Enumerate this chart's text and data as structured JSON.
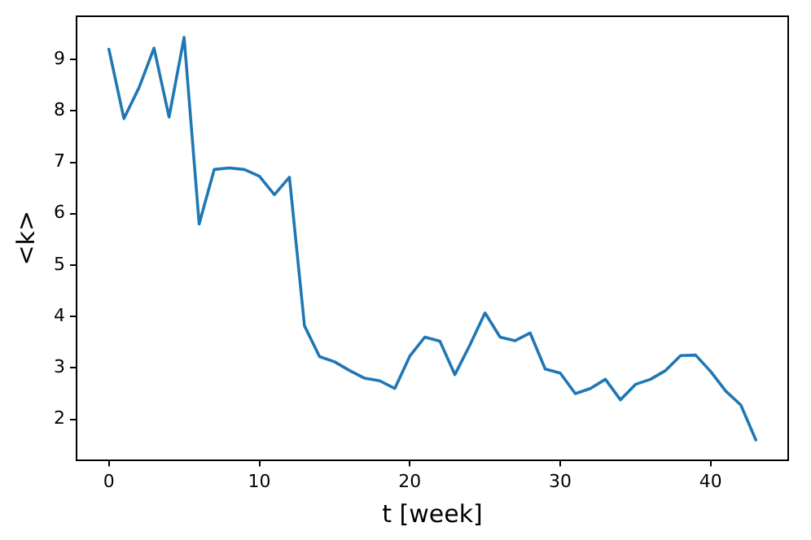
{
  "chart_data": {
    "type": "line",
    "xlabel": "t [week]",
    "ylabel": "<k>",
    "x": [
      0,
      1,
      2,
      3,
      4,
      5,
      6,
      7,
      8,
      9,
      10,
      11,
      12,
      13,
      14,
      15,
      16,
      17,
      18,
      19,
      20,
      21,
      22,
      23,
      24,
      25,
      26,
      27,
      28,
      29,
      30,
      31,
      32,
      33,
      34,
      35,
      36,
      37,
      38,
      39,
      40,
      41,
      42,
      43
    ],
    "series": [
      {
        "color": "#1f77b4",
        "values": [
          9.2,
          7.85,
          8.45,
          9.22,
          7.88,
          9.43,
          5.8,
          6.86,
          6.89,
          6.86,
          6.73,
          6.37,
          6.71,
          3.82,
          3.22,
          3.12,
          2.95,
          2.8,
          2.75,
          2.6,
          3.23,
          3.6,
          3.52,
          2.87,
          3.45,
          4.07,
          3.6,
          3.53,
          3.68,
          2.98,
          2.9,
          2.5,
          2.6,
          2.78,
          2.38,
          2.68,
          2.78,
          2.95,
          3.24,
          3.25,
          2.93,
          2.55,
          2.28,
          1.6
        ]
      }
    ],
    "xlim": [
      -2.15,
      45.15
    ],
    "xticks": [
      0,
      10,
      20,
      30,
      40
    ],
    "ylim": [
      1.21,
      9.84
    ],
    "yticks": [
      2,
      3,
      4,
      5,
      6,
      7,
      8,
      9
    ],
    "grid": false,
    "legend": false,
    "marker": "none",
    "line_style": "solid"
  }
}
